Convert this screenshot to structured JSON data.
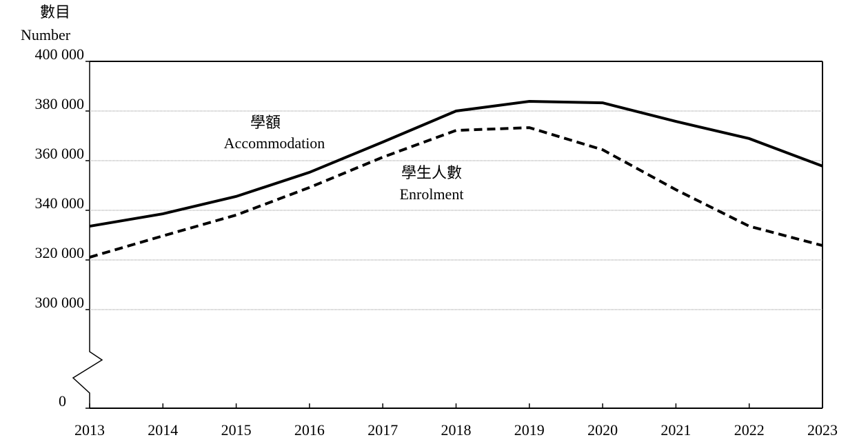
{
  "chart_data": {
    "type": "line",
    "ylabel": "數目",
    "ylabel_en": "Number",
    "categories": [
      "2013",
      "2014",
      "2015",
      "2016",
      "2017",
      "2018",
      "2019",
      "2020",
      "2021",
      "2022",
      "2023"
    ],
    "series": [
      {
        "name": "學額",
        "name_en": "Accommodation",
        "color": "#000000",
        "line_style": "solid",
        "values": [
          333600,
          338600,
          345600,
          355300,
          367500,
          380000,
          383900,
          383300,
          375800,
          368900,
          357800
        ]
      },
      {
        "name": "學生人數",
        "name_en": "Enrolment",
        "color": "#000000",
        "line_style": "dashed",
        "values": [
          321100,
          329700,
          338100,
          349200,
          361400,
          372200,
          373300,
          364400,
          348300,
          333600,
          325800
        ]
      }
    ],
    "ylim": [
      300000,
      400000
    ],
    "yticks": [
      0,
      {
        "value": 300000,
        "label": "300 000"
      },
      {
        "value": 320000,
        "label": "320 000"
      },
      {
        "value": 340000,
        "label": "340 000"
      },
      {
        "value": 360000,
        "label": "360 000"
      },
      {
        "value": 380000,
        "label": "380 000"
      },
      {
        "value": 400000,
        "label": "400 000"
      }
    ],
    "axis_break": true,
    "grid": true
  }
}
